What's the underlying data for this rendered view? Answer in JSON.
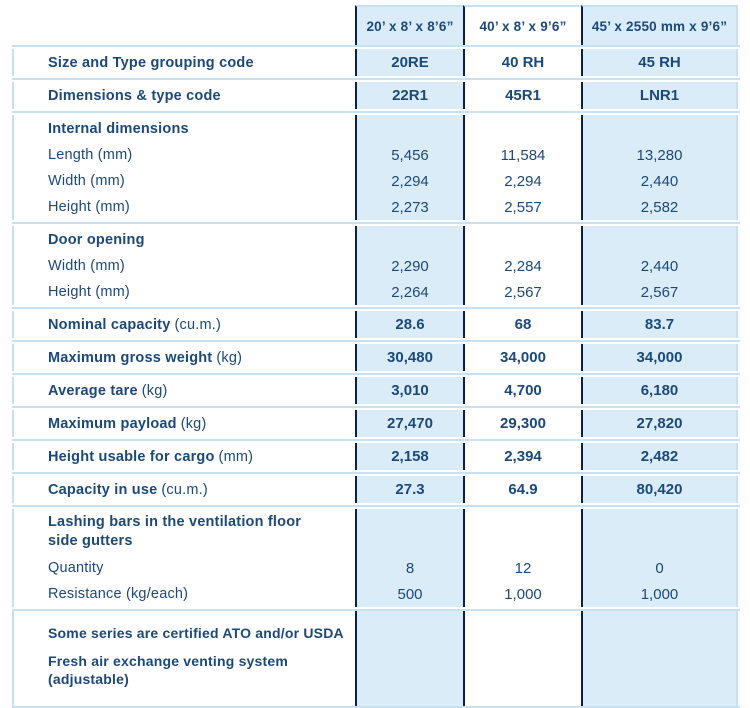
{
  "colors": {
    "column_fill": "#d9ecf8",
    "row_separator": "#c5e1f2",
    "column_divider": "#0b2240",
    "text": "#1b4979",
    "background": "#ffffff"
  },
  "table": {
    "columns": [
      "20’ x 8’ x 8’6”",
      "40’ x 8’ x 9’6”",
      "45’ x 2550 mm x 9’6”"
    ],
    "rows": [
      {
        "kind": "single",
        "label": "Size and Type grouping code",
        "unit": "",
        "bold_label": true,
        "bold_values": true,
        "values": [
          "20RE",
          "40 RH",
          "45 RH"
        ]
      },
      {
        "kind": "single",
        "label": "Dimensions & type code",
        "unit": "",
        "bold_label": true,
        "bold_values": true,
        "values": [
          "22R1",
          "45R1",
          "LNR1"
        ]
      },
      {
        "kind": "group",
        "header": "Internal dimensions",
        "two_line": false,
        "lines": [
          {
            "label": "Length (mm)",
            "values": [
              "5,456",
              "11,584",
              "13,280"
            ]
          },
          {
            "label": "Width (mm)",
            "values": [
              "2,294",
              "2,294",
              "2,440"
            ]
          },
          {
            "label": "Height (mm)",
            "values": [
              "2,273",
              "2,557",
              "2,582"
            ]
          }
        ]
      },
      {
        "kind": "group",
        "header": "Door opening",
        "two_line": false,
        "lines": [
          {
            "label": "Width (mm)",
            "values": [
              "2,290",
              "2,284",
              "2,440"
            ]
          },
          {
            "label": "Height (mm)",
            "values": [
              "2,264",
              "2,567",
              "2,567"
            ]
          }
        ]
      },
      {
        "kind": "single",
        "label": "Nominal capacity",
        "unit": "(cu.m.)",
        "bold_label": true,
        "bold_values": true,
        "values": [
          "28.6",
          "68",
          "83.7"
        ]
      },
      {
        "kind": "single",
        "label": "Maximum gross weight",
        "unit": "(kg)",
        "bold_label": true,
        "bold_values": true,
        "values": [
          "30,480",
          "34,000",
          "34,000"
        ]
      },
      {
        "kind": "single",
        "label": "Average tare",
        "unit": "(kg)",
        "bold_label": true,
        "bold_values": true,
        "values": [
          "3,010",
          "4,700",
          "6,180"
        ]
      },
      {
        "kind": "single",
        "label": "Maximum payload",
        "unit": "(kg)",
        "bold_label": true,
        "bold_values": true,
        "values": [
          "27,470",
          "29,300",
          "27,820"
        ]
      },
      {
        "kind": "single",
        "label": "Height usable for cargo",
        "unit": "(mm)",
        "bold_label": true,
        "bold_values": true,
        "values": [
          "2,158",
          "2,394",
          "2,482"
        ]
      },
      {
        "kind": "single",
        "label": "Capacity in use",
        "unit": "(cu.m.)",
        "bold_label": true,
        "bold_values": true,
        "values": [
          "27.3",
          "64.9",
          "80,420"
        ]
      },
      {
        "kind": "group",
        "header": "Lashing bars in the ventilation floor side gutters",
        "two_line": true,
        "lines": [
          {
            "label": "Quantity",
            "values": [
              "8",
              "12",
              "0"
            ]
          },
          {
            "label": "Resistance (kg/each)",
            "values": [
              "500",
              "1,000",
              "1,000"
            ]
          }
        ]
      },
      {
        "kind": "notes",
        "notes": [
          "Some series are certified ATO and/or USDA",
          "Fresh air exchange venting system (adjustable)"
        ]
      }
    ]
  }
}
